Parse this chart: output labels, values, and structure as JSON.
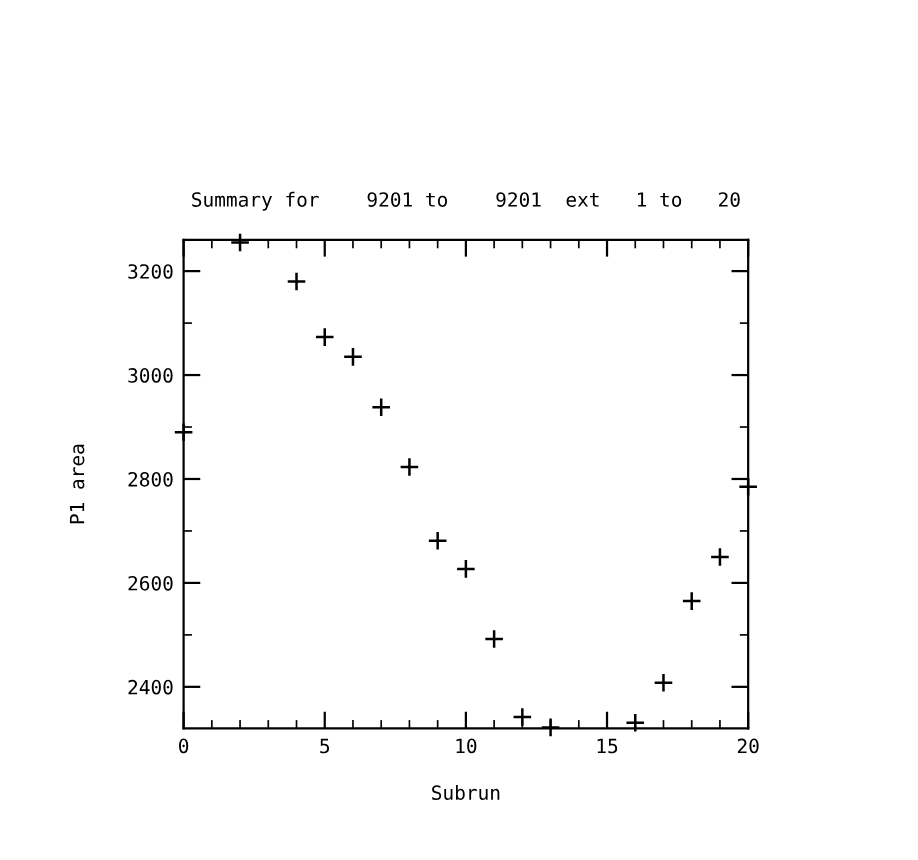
{
  "chart_data": {
    "type": "scatter",
    "title": "Summary for    9201 to    9201  ext   1 to   20",
    "xlabel": "Subrun",
    "ylabel": "P1 area",
    "x": [
      0,
      2,
      4,
      5,
      6,
      7,
      8,
      9,
      10,
      11,
      12,
      13,
      16,
      17,
      18,
      19,
      20
    ],
    "values": [
      2890,
      3255,
      3180,
      3073,
      3035,
      2938,
      2823,
      2681,
      2627,
      2492,
      2342,
      2322,
      2331,
      2408,
      2565,
      2650,
      2785
    ],
    "color": "#000000",
    "marker": "cross",
    "xlim": [
      0,
      20
    ],
    "xticks": [
      0,
      5,
      10,
      15,
      20
    ],
    "ylim": [
      2320,
      3260
    ],
    "yticks": [
      2400,
      2600,
      2800,
      3000,
      3200
    ],
    "grid": false,
    "legend": false
  }
}
